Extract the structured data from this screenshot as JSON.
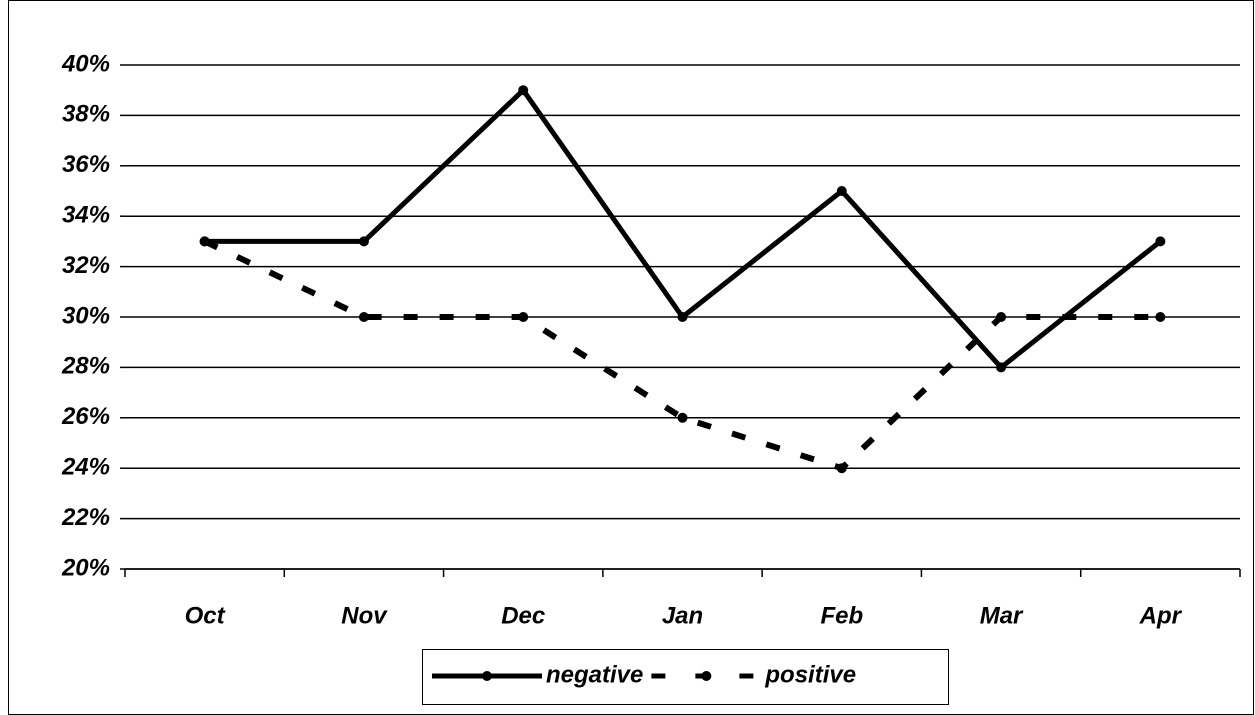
{
  "chart_data": {
    "type": "line",
    "categories": [
      "Oct",
      "Nov",
      "Dec",
      "Jan",
      "Feb",
      "Mar",
      "Apr"
    ],
    "series": [
      {
        "name": "negative",
        "color": "#000000",
        "style": "solid",
        "values": [
          33,
          33,
          39,
          30,
          35,
          28,
          33
        ]
      },
      {
        "name": "positive",
        "color": "#000000",
        "style": "dashed",
        "values": [
          33,
          30,
          30,
          26,
          24,
          30,
          30
        ]
      }
    ],
    "ylim": [
      20,
      40
    ],
    "yticks": [
      {
        "value": 20,
        "label": "20%"
      },
      {
        "value": 22,
        "label": "22%"
      },
      {
        "value": 24,
        "label": "24%"
      },
      {
        "value": 26,
        "label": "26%"
      },
      {
        "value": 28,
        "label": "28%"
      },
      {
        "value": 30,
        "label": "30%"
      },
      {
        "value": 32,
        "label": "32%"
      },
      {
        "value": 34,
        "label": "34%"
      },
      {
        "value": 36,
        "label": "36%"
      },
      {
        "value": 38,
        "label": "38%"
      },
      {
        "value": 40,
        "label": "40%"
      }
    ],
    "grid": true,
    "legend": "bottom"
  }
}
